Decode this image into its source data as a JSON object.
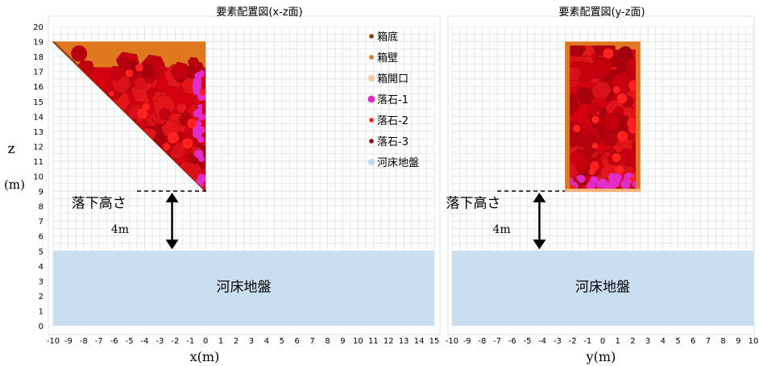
{
  "z_axis_label": "z",
  "z_axis_unit": "(m)",
  "charts": [
    {
      "title": "要素配置図(x-z面)",
      "xlabel": "x(m)",
      "xlim": [
        -10,
        15
      ],
      "ylim": [
        0,
        20
      ],
      "xticks": [
        -10,
        -9,
        -8,
        -7,
        -6,
        -5,
        -4,
        -3,
        -2,
        -1,
        0,
        1,
        2,
        3,
        4,
        5,
        6,
        7,
        8,
        9,
        10,
        11,
        12,
        13,
        14,
        15
      ],
      "yticks": [
        0,
        1,
        2,
        3,
        4,
        5,
        6,
        7,
        8,
        9,
        10,
        11,
        12,
        13,
        14,
        15,
        16,
        17,
        18,
        19,
        20
      ],
      "riverbed_label": "河床地盤",
      "drop_label": "落下高さ",
      "drop_value": "4m",
      "ground_level": 5,
      "drop_top": 9,
      "drop_line_x": [
        -4.5,
        0.2
      ],
      "arrow_x": -2.2,
      "drop_label_pos": [
        -8.8,
        7.9
      ],
      "drop_value_pos": [
        -6.2,
        6.2
      ],
      "box_shape": "triangle",
      "box": {
        "xmin": -10,
        "xmax": 0,
        "zmin": 9,
        "zmax": 19
      }
    },
    {
      "title": "要素配置図(y-z面)",
      "xlabel": "y(m)",
      "xlim": [
        -10,
        10
      ],
      "ylim": [
        0,
        20
      ],
      "xticks": [
        -10,
        -9,
        -8,
        -7,
        -6,
        -5,
        -4,
        -3,
        -2,
        -1,
        0,
        1,
        2,
        3,
        4,
        5,
        6,
        7,
        8,
        9,
        10
      ],
      "yticks": [],
      "riverbed_label": "河床地盤",
      "drop_label": "落下高さ",
      "drop_value": "4m",
      "ground_level": 5,
      "drop_top": 9,
      "drop_line_x": [
        -7,
        -2.5
      ],
      "arrow_x": -4.2,
      "drop_label_pos": [
        -10.4,
        7.9
      ],
      "drop_value_pos": [
        -7.3,
        6.2
      ],
      "box_shape": "rect",
      "box": {
        "xmin": -2.5,
        "xmax": 2.5,
        "zmin": 9,
        "zmax": 19
      }
    }
  ],
  "legend": [
    {
      "label": "箱底",
      "color": "#8B3A14"
    },
    {
      "label": "箱壁",
      "color": "#E0761A"
    },
    {
      "label": "箱開口",
      "color": "#F6C89A"
    },
    {
      "label": "落石-1",
      "color": "#E22BC8"
    },
    {
      "label": "落石-2",
      "color": "#FF1F1F"
    },
    {
      "label": "落石-3",
      "color": "#A00010"
    },
    {
      "label": "河床地盤",
      "color": "#BDDCF0"
    }
  ],
  "colors": {
    "grid": "#D9D9D9",
    "riverbed": "#C9DFF1",
    "rock_dark": "#B80010",
    "rock_mid": "#D4000F",
    "rock_bright": "#FF2020",
    "magenta": "#E02CC8",
    "box_wall": "#E07820",
    "box_bottom": "#8B3A14"
  }
}
